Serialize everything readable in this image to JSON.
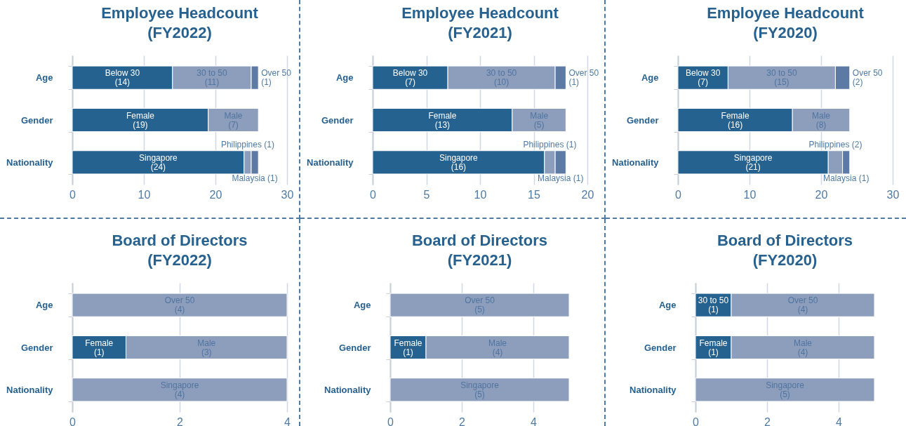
{
  "chart_data": [
    {
      "type": "bar",
      "orientation": "horizontal",
      "stacked": true,
      "title": "Employee Headcount\n(FY2022)",
      "categories": [
        "Age",
        "Gender",
        "Nationality"
      ],
      "xlim": [
        0,
        30
      ],
      "xticks": [
        0,
        10,
        20,
        30
      ],
      "grid": "x",
      "series": [
        {
          "color": "#26628f",
          "values": [
            14,
            19,
            24
          ],
          "value_labels": [
            "Below 30\n(14)",
            "Female\n(19)",
            "Singapore\n(24)"
          ]
        },
        {
          "color": "#8d9ebd",
          "values": [
            11,
            7,
            1
          ],
          "value_labels": [
            "30 to 50\n(11)",
            "Male\n(7)",
            "Philippines (1)"
          ]
        },
        {
          "color": "#5d7aa4",
          "values": [
            1,
            null,
            1
          ],
          "value_labels": [
            "Over 50\n(1)",
            null,
            "Malaysia (1)"
          ]
        }
      ]
    },
    {
      "type": "bar",
      "orientation": "horizontal",
      "stacked": true,
      "title": "Employee Headcount\n(FY2021)",
      "categories": [
        "Age",
        "Gender",
        "Nationality"
      ],
      "xlim": [
        0,
        20
      ],
      "xticks": [
        0,
        5,
        10,
        15,
        20
      ],
      "grid": "x",
      "series": [
        {
          "color": "#26628f",
          "values": [
            7,
            13,
            16
          ],
          "value_labels": [
            "Below 30\n(7)",
            "Female\n(13)",
            "Singapore\n(16)"
          ]
        },
        {
          "color": "#8d9ebd",
          "values": [
            10,
            5,
            1
          ],
          "value_labels": [
            "30 to 50\n(10)",
            "Male\n(5)",
            "Philippines (1)"
          ]
        },
        {
          "color": "#5d7aa4",
          "values": [
            1,
            null,
            1
          ],
          "value_labels": [
            "Over 50\n(1)",
            null,
            "Malaysia (1)"
          ]
        }
      ]
    },
    {
      "type": "bar",
      "orientation": "horizontal",
      "stacked": true,
      "title": "Employee Headcount\n(FY2020)",
      "categories": [
        "Age",
        "Gender",
        "Nationality"
      ],
      "xlim": [
        0,
        30
      ],
      "xticks": [
        0,
        10,
        20,
        30
      ],
      "grid": "x",
      "series": [
        {
          "color": "#26628f",
          "values": [
            7,
            16,
            21
          ],
          "value_labels": [
            "Below 30\n(7)",
            "Female\n(16)",
            "Singapore\n(21)"
          ]
        },
        {
          "color": "#8d9ebd",
          "values": [
            15,
            8,
            2
          ],
          "value_labels": [
            "30 to 50\n(15)",
            "Male\n(8)",
            "Philippines (2)"
          ]
        },
        {
          "color": "#5d7aa4",
          "values": [
            2,
            null,
            1
          ],
          "value_labels": [
            "Over 50\n(2)",
            null,
            "Malaysia (1)"
          ]
        }
      ]
    },
    {
      "type": "bar",
      "orientation": "horizontal",
      "stacked": true,
      "title": "Board of Directors\n(FY2022)",
      "categories": [
        "Age",
        "Gender",
        "Nationality"
      ],
      "xlim": [
        0,
        4
      ],
      "xticks": [
        0,
        2,
        4
      ],
      "grid": "x",
      "series": [
        {
          "colors": [
            "#8d9ebd",
            "#26628f",
            "#8d9ebd"
          ],
          "values": [
            4,
            1,
            4
          ],
          "value_labels": [
            "Over 50\n(4)",
            "Female\n(1)",
            "Singapore\n(4)"
          ]
        },
        {
          "color": "#8d9ebd",
          "values": [
            null,
            3,
            null
          ],
          "value_labels": [
            null,
            "Male\n(3)",
            null
          ]
        }
      ]
    },
    {
      "type": "bar",
      "orientation": "horizontal",
      "stacked": true,
      "title": "Board of Directors\n(FY2021)",
      "categories": [
        "Age",
        "Gender",
        "Nationality"
      ],
      "xlim": [
        0,
        5
      ],
      "xticks": [
        0,
        2,
        4
      ],
      "grid": "x",
      "series": [
        {
          "colors": [
            "#8d9ebd",
            "#26628f",
            "#8d9ebd"
          ],
          "values": [
            5,
            1,
            5
          ],
          "value_labels": [
            "Over 50\n(5)",
            "Female\n(1)",
            "Singapore\n(5)"
          ]
        },
        {
          "color": "#8d9ebd",
          "values": [
            null,
            4,
            null
          ],
          "value_labels": [
            null,
            "Male\n(4)",
            null
          ]
        }
      ]
    },
    {
      "type": "bar",
      "orientation": "horizontal",
      "stacked": true,
      "title": "Board of Directors\n(FY2020)",
      "categories": [
        "Age",
        "Gender",
        "Nationality"
      ],
      "xlim": [
        0,
        5
      ],
      "xticks": [
        0,
        2,
        4
      ],
      "grid": "x",
      "series": [
        {
          "colors": [
            "#26628f",
            "#26628f",
            "#8d9ebd"
          ],
          "values": [
            1,
            1,
            5
          ],
          "value_labels": [
            "30 to 50\n(1)",
            "Female\n(1)",
            "Singapore\n(5)"
          ]
        },
        {
          "color": "#8d9ebd",
          "values": [
            4,
            4,
            null
          ],
          "value_labels": [
            "Over 50\n(4)",
            "Male\n(4)",
            null
          ]
        }
      ]
    }
  ]
}
